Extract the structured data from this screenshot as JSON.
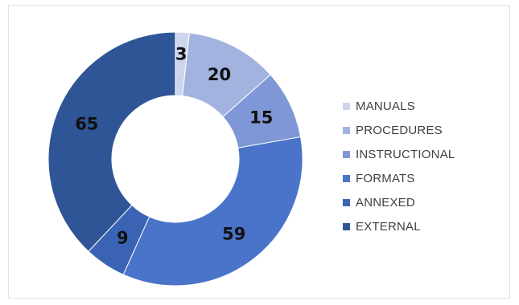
{
  "chart_data": {
    "type": "pie",
    "donut": true,
    "categories": [
      "MANUALS",
      "PROCEDURES",
      "INSTRUCTIONAL",
      "FORMATS",
      "ANNEXED",
      "EXTERNAL"
    ],
    "values": [
      3,
      20,
      15,
      59,
      9,
      65
    ],
    "data_labels": [
      "3",
      "20",
      "15",
      "59",
      "9",
      "65"
    ],
    "colors": [
      "#cdd5ec",
      "#a3b3e0",
      "#7f97d6",
      "#4a74c9",
      "#3b63b3",
      "#2f5597"
    ],
    "legend_position": "right"
  }
}
